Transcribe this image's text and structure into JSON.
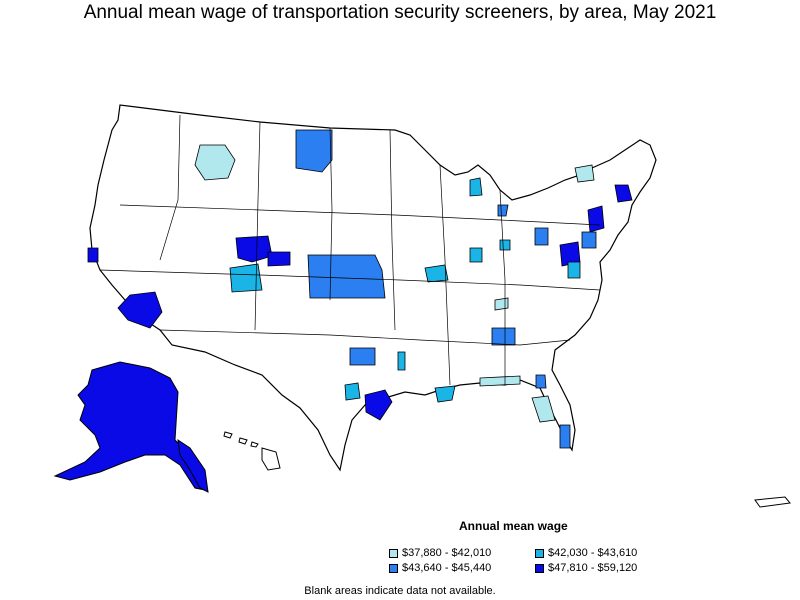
{
  "title": "Annual mean wage of transportation security screeners, by area, May 2021",
  "legend": {
    "title": "Annual mean wage",
    "items": [
      {
        "label": "$37,880 - $42,010",
        "color": "#b0e8ee"
      },
      {
        "label": "$42,030 - $43,610",
        "color": "#1ab4e6"
      },
      {
        "label": "$43,640 - $45,440",
        "color": "#2b7ff0"
      },
      {
        "label": "$47,810 - $59,120",
        "color": "#0a0ae6"
      }
    ]
  },
  "note": "Blank areas indicate data not available."
}
